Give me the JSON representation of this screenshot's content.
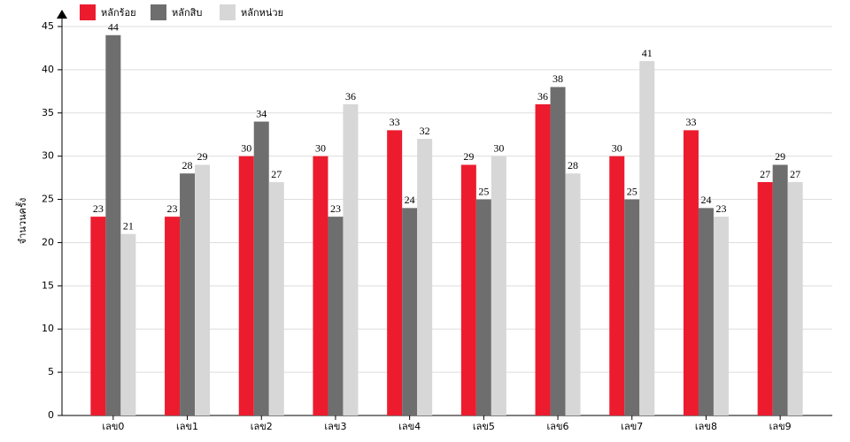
{
  "chart_data": {
    "type": "bar",
    "y_label": "จำนวนครั้ง",
    "categories": [
      "เลข0",
      "เลข1",
      "เลข2",
      "เลข3",
      "เลข4",
      "เลข5",
      "เลข6",
      "เลข7",
      "เลข8",
      "เลข9"
    ],
    "series": [
      {
        "name": "หลักร้อย",
        "color": "#ec1c2e",
        "values": [
          23,
          23,
          30,
          30,
          33,
          29,
          36,
          30,
          33,
          27
        ]
      },
      {
        "name": "หลักสิบ",
        "color": "#6e6e6e",
        "values": [
          44,
          28,
          34,
          23,
          24,
          25,
          38,
          25,
          24,
          29
        ]
      },
      {
        "name": "หลักหน่วย",
        "color": "#d7d7d7",
        "values": [
          21,
          29,
          27,
          36,
          32,
          30,
          28,
          41,
          23,
          27
        ]
      }
    ],
    "ylim": [
      0,
      45
    ],
    "yticks": [
      0,
      5,
      10,
      15,
      20,
      25,
      30,
      35,
      40,
      45
    ],
    "grid": true
  }
}
